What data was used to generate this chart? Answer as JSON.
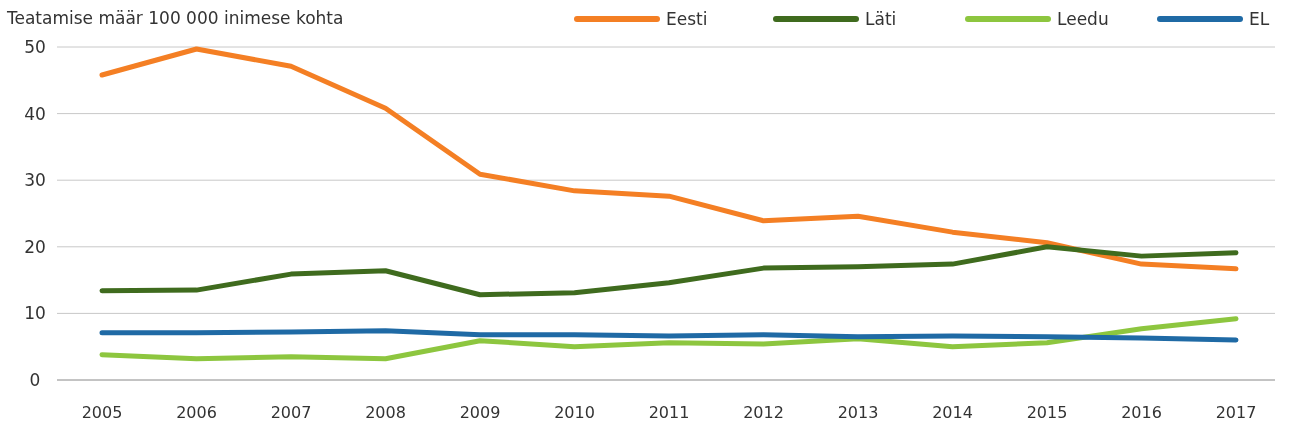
{
  "chart_data": {
    "type": "line",
    "title": "Teatamise määr 100 000 inimese kohta",
    "categories": [
      "2005",
      "2006",
      "2007",
      "2008",
      "2009",
      "2010",
      "2011",
      "2012",
      "2013",
      "2014",
      "2015",
      "2016",
      "2017"
    ],
    "series": [
      {
        "name": "Eesti",
        "color": "#f47f24",
        "values": [
          45.8,
          49.7,
          47.1,
          40.8,
          30.9,
          28.4,
          27.6,
          23.9,
          24.6,
          22.2,
          20.6,
          17.4,
          16.7
        ]
      },
      {
        "name": "Läti",
        "color": "#3f6b1e",
        "values": [
          13.4,
          13.5,
          15.9,
          16.4,
          12.8,
          13.1,
          14.6,
          16.8,
          17.0,
          17.4,
          20.0,
          18.6,
          19.1
        ]
      },
      {
        "name": "Leedu",
        "color": "#8dc63f",
        "values": [
          3.8,
          3.2,
          3.5,
          3.2,
          5.9,
          5.0,
          5.6,
          5.4,
          6.2,
          5.0,
          5.6,
          7.7,
          9.2
        ]
      },
      {
        "name": "EL",
        "color": "#1f6aa5",
        "values": [
          7.1,
          7.1,
          7.2,
          7.4,
          6.8,
          6.8,
          6.6,
          6.8,
          6.5,
          6.6,
          6.5,
          6.3,
          6.0
        ]
      }
    ],
    "ylim": [
      0,
      50
    ],
    "yticks": [
      0,
      10,
      20,
      30,
      40,
      50
    ],
    "grid": "y",
    "legend": "top right",
    "marker": "none",
    "line_style": "solid"
  }
}
